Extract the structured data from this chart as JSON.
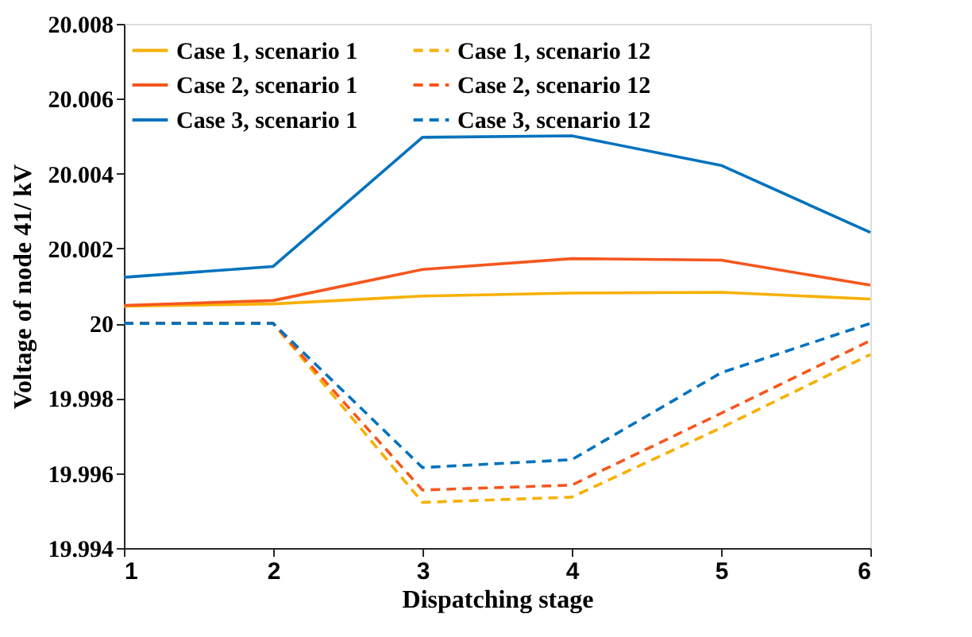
{
  "chart_data": {
    "type": "line",
    "xlabel": "Dispatching stage",
    "ylabel": "Voltage of node 41/ kV",
    "x": [
      1,
      2,
      3,
      4,
      5,
      6
    ],
    "xlim": [
      1,
      6
    ],
    "xticks": [
      1,
      2,
      3,
      4,
      5,
      6
    ],
    "ylim": [
      19.994,
      20.008
    ],
    "yticks": [
      19.994,
      19.996,
      19.998,
      20,
      20.002,
      20.004,
      20.006,
      20.008
    ],
    "grid": false,
    "legend": "top left",
    "marker": "none",
    "series": [
      {
        "name": "Case 1, scenario 1",
        "color": "#f7b000",
        "line_style": "solid",
        "values": [
          20.00046,
          20.00052,
          20.00073,
          20.00081,
          20.00083,
          20.00065
        ]
      },
      {
        "name": "Case 2, scenario 1",
        "color": "#f5561d",
        "line_style": "solid",
        "values": [
          20.00048,
          20.00061,
          20.00144,
          20.00173,
          20.00169,
          20.00102
        ]
      },
      {
        "name": "Case 3, scenario 1",
        "color": "#0072bd",
        "line_style": "solid",
        "values": [
          20.00123,
          20.00152,
          20.00497,
          20.00501,
          20.00422,
          20.00243
        ]
      },
      {
        "name": "Case 1, scenario 12",
        "color": "#f7b000",
        "line_style": "dashed",
        "values": [
          20.0,
          20.0,
          19.99522,
          19.99536,
          19.99721,
          19.99917
        ]
      },
      {
        "name": "Case 2, scenario 12",
        "color": "#f5561d",
        "line_style": "dashed",
        "values": [
          20.0,
          20.0,
          19.99555,
          19.99568,
          19.9976,
          19.99954
        ]
      },
      {
        "name": "Case 3, scenario 12",
        "color": "#0072bd",
        "line_style": "dashed",
        "values": [
          20.0,
          20.0,
          19.99615,
          19.99636,
          19.99868,
          20.0
        ]
      }
    ]
  }
}
